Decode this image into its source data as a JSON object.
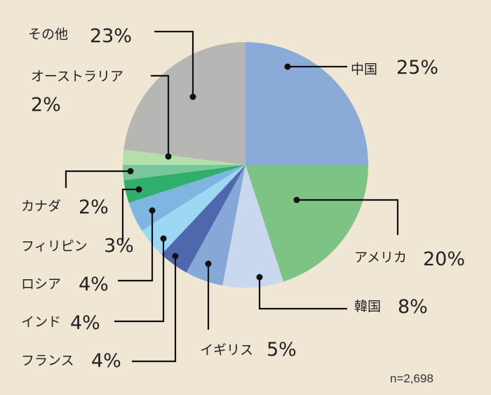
{
  "chart_data": {
    "type": "pie",
    "title": "",
    "note": "n=2,698",
    "start_angle_deg": 0,
    "direction": "clockwise",
    "slices": [
      {
        "label": "中国",
        "pct_text": "25%",
        "value": 25,
        "color": "#8aabd8"
      },
      {
        "label": "アメリカ",
        "pct_text": "20%",
        "value": 20,
        "color": "#7cc384"
      },
      {
        "label": "韓国",
        "pct_text": "8%",
        "value": 8,
        "color": "#c9d8ef"
      },
      {
        "label": "イギリス",
        "pct_text": "5%",
        "value": 5,
        "color": "#86a8d6"
      },
      {
        "label": "フランス",
        "pct_text": "4%",
        "value": 4,
        "color": "#4f68ad"
      },
      {
        "label": "インド",
        "pct_text": "4%",
        "value": 4,
        "color": "#9cd8f3"
      },
      {
        "label": "ロシア",
        "pct_text": "4%",
        "value": 4,
        "color": "#7eb6e2"
      },
      {
        "label": "フィリピン",
        "pct_text": "3%",
        "value": 3,
        "color": "#2fae6c"
      },
      {
        "label": "カナダ",
        "pct_text": "2%",
        "value": 2,
        "color": "#79c69a"
      },
      {
        "label": "オーストラリア",
        "pct_text": "2%",
        "value": 2,
        "color": "#b3dfad"
      },
      {
        "label": "その他",
        "pct_text": "23%",
        "value": 23,
        "color": "#b6b7b4"
      }
    ]
  }
}
